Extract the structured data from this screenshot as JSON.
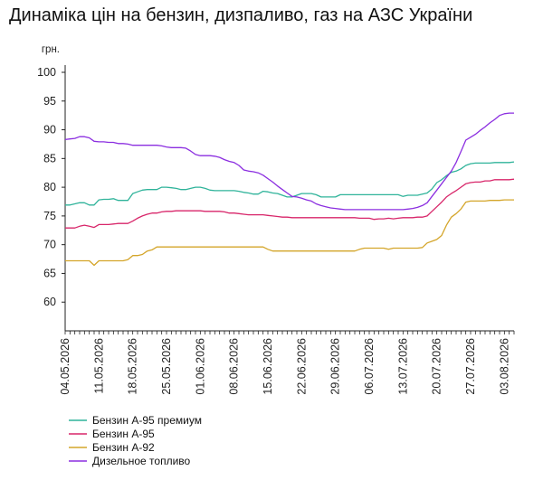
{
  "chart_data": {
    "type": "line",
    "title": "Динаміка цін на бензин, дизпаливо, газ на АЗС України",
    "ylabel": "грн.",
    "xlabel": "",
    "ylim": [
      55,
      100
    ],
    "yticks": [
      60,
      65,
      70,
      75,
      80,
      85,
      90,
      95,
      100
    ],
    "grid": false,
    "legend_position": "bottom-left",
    "x_dates": [
      "04.05.2026",
      "05.05.2026",
      "06.05.2026",
      "07.05.2026",
      "08.05.2026",
      "09.05.2026",
      "10.05.2026",
      "11.05.2026",
      "12.05.2026",
      "13.05.2026",
      "14.05.2026",
      "15.05.2026",
      "16.05.2026",
      "17.05.2026",
      "18.05.2026",
      "19.05.2026",
      "20.05.2026",
      "21.05.2026",
      "22.05.2026",
      "23.05.2026",
      "24.05.2026",
      "25.05.2026",
      "26.05.2026",
      "27.05.2026",
      "28.05.2026",
      "29.05.2026",
      "30.05.2026",
      "31.05.2026",
      "01.06.2026",
      "02.06.2026",
      "03.06.2026",
      "04.06.2026",
      "05.06.2026",
      "06.06.2026",
      "07.06.2026",
      "08.06.2026",
      "09.06.2026",
      "10.06.2026",
      "11.06.2026",
      "12.06.2026",
      "13.06.2026",
      "14.06.2026",
      "15.06.2026",
      "16.06.2026",
      "17.06.2026",
      "18.06.2026",
      "19.06.2026",
      "20.06.2026",
      "21.06.2026",
      "22.06.2026",
      "23.06.2026",
      "24.06.2026",
      "25.06.2026",
      "26.06.2026",
      "27.06.2026",
      "28.06.2026",
      "29.06.2026",
      "30.06.2026",
      "01.07.2026",
      "02.07.2026",
      "03.07.2026",
      "04.07.2026",
      "05.07.2026",
      "06.07.2026",
      "07.07.2026",
      "08.07.2026",
      "09.07.2026",
      "10.07.2026",
      "11.07.2026",
      "12.07.2026",
      "13.07.2026",
      "14.07.2026",
      "15.07.2026",
      "16.07.2026",
      "17.07.2026",
      "18.07.2026",
      "19.07.2026",
      "20.07.2026",
      "21.07.2026",
      "22.07.2026",
      "23.07.2026",
      "24.07.2026",
      "25.07.2026",
      "26.07.2026",
      "27.07.2026",
      "28.07.2026",
      "29.07.2026",
      "30.07.2026",
      "31.07.2026",
      "01.08.2026",
      "02.08.2026",
      "03.08.2026",
      "04.08.2026",
      "05.08.2026"
    ],
    "x_tick_labels": [
      "04.05.2026",
      "11.05.2026",
      "18.05.2026",
      "25.05.2026",
      "01.06.2026",
      "08.06.2026",
      "15.06.2026",
      "22.06.2026",
      "29.06.2026",
      "06.07.2026",
      "13.07.2026",
      "20.07.2026",
      "27.07.2026",
      "03.08.2026"
    ],
    "series": [
      {
        "name": "Бензин А-95 премиум",
        "color": "#2fb39a",
        "values": [
          76.9,
          76.9,
          77.1,
          77.3,
          77.3,
          76.9,
          76.9,
          77.8,
          77.9,
          77.9,
          78.0,
          77.7,
          77.7,
          77.7,
          78.9,
          79.2,
          79.5,
          79.6,
          79.6,
          79.6,
          80.0,
          80.0,
          79.9,
          79.8,
          79.6,
          79.6,
          79.8,
          80.0,
          80.0,
          79.8,
          79.5,
          79.4,
          79.4,
          79.4,
          79.4,
          79.4,
          79.3,
          79.1,
          79.0,
          78.8,
          78.8,
          79.3,
          79.2,
          79.0,
          78.9,
          78.6,
          78.3,
          78.3,
          78.6,
          78.9,
          78.9,
          78.9,
          78.7,
          78.3,
          78.3,
          78.3,
          78.3,
          78.7,
          78.7,
          78.7,
          78.7,
          78.7,
          78.7,
          78.7,
          78.7,
          78.7,
          78.7,
          78.7,
          78.7,
          78.7,
          78.4,
          78.6,
          78.6,
          78.6,
          78.8,
          79.0,
          79.7,
          80.8,
          81.3,
          82.0,
          82.6,
          82.8,
          83.2,
          83.8,
          84.1,
          84.2,
          84.2,
          84.2,
          84.2,
          84.3,
          84.3,
          84.3,
          84.3,
          84.4
        ]
      },
      {
        "name": "Бензин А-95",
        "color": "#d8266a",
        "values": [
          72.9,
          72.9,
          72.9,
          73.2,
          73.4,
          73.2,
          73.0,
          73.5,
          73.5,
          73.5,
          73.6,
          73.7,
          73.7,
          73.7,
          74.1,
          74.6,
          75.0,
          75.3,
          75.5,
          75.5,
          75.7,
          75.8,
          75.8,
          75.9,
          75.9,
          75.9,
          75.9,
          75.9,
          75.9,
          75.8,
          75.8,
          75.8,
          75.8,
          75.7,
          75.5,
          75.5,
          75.4,
          75.3,
          75.2,
          75.2,
          75.2,
          75.2,
          75.1,
          75.0,
          74.9,
          74.8,
          74.8,
          74.7,
          74.7,
          74.7,
          74.7,
          74.7,
          74.7,
          74.7,
          74.7,
          74.7,
          74.7,
          74.7,
          74.7,
          74.7,
          74.7,
          74.6,
          74.6,
          74.6,
          74.4,
          74.5,
          74.5,
          74.6,
          74.5,
          74.6,
          74.7,
          74.7,
          74.7,
          74.8,
          74.8,
          75.0,
          75.8,
          76.6,
          77.4,
          78.3,
          78.9,
          79.4,
          80.0,
          80.6,
          80.8,
          80.9,
          80.9,
          81.1,
          81.1,
          81.3,
          81.3,
          81.3,
          81.3,
          81.4
        ]
      },
      {
        "name": "Бензин А-92",
        "color": "#d4a52a",
        "values": [
          67.2,
          67.2,
          67.2,
          67.2,
          67.2,
          67.2,
          66.4,
          67.2,
          67.2,
          67.2,
          67.2,
          67.2,
          67.2,
          67.4,
          68.1,
          68.1,
          68.3,
          68.9,
          69.1,
          69.6,
          69.6,
          69.6,
          69.6,
          69.6,
          69.6,
          69.6,
          69.6,
          69.6,
          69.6,
          69.6,
          69.6,
          69.6,
          69.6,
          69.6,
          69.6,
          69.6,
          69.6,
          69.6,
          69.6,
          69.6,
          69.6,
          69.6,
          69.2,
          68.9,
          68.9,
          68.9,
          68.9,
          68.9,
          68.9,
          68.9,
          68.9,
          68.9,
          68.9,
          68.9,
          68.9,
          68.9,
          68.9,
          68.9,
          68.9,
          68.9,
          68.9,
          69.2,
          69.4,
          69.4,
          69.4,
          69.4,
          69.4,
          69.2,
          69.4,
          69.4,
          69.4,
          69.4,
          69.4,
          69.4,
          69.5,
          70.3,
          70.6,
          70.9,
          71.6,
          73.4,
          74.8,
          75.4,
          76.2,
          77.4,
          77.6,
          77.6,
          77.6,
          77.6,
          77.7,
          77.7,
          77.7,
          77.8,
          77.8,
          77.8
        ]
      },
      {
        "name": "Дизельное топливо",
        "color": "#8b2ee0",
        "values": [
          88.3,
          88.4,
          88.5,
          88.8,
          88.8,
          88.6,
          88.0,
          87.9,
          87.9,
          87.8,
          87.8,
          87.6,
          87.6,
          87.5,
          87.3,
          87.3,
          87.3,
          87.3,
          87.3,
          87.3,
          87.2,
          87.0,
          86.9,
          86.9,
          86.9,
          86.8,
          86.3,
          85.7,
          85.5,
          85.5,
          85.5,
          85.4,
          85.2,
          84.8,
          84.5,
          84.3,
          83.8,
          83.0,
          82.8,
          82.7,
          82.5,
          82.1,
          81.5,
          80.9,
          80.2,
          79.6,
          79.0,
          78.4,
          78.3,
          78.1,
          77.8,
          77.6,
          77.1,
          76.8,
          76.6,
          76.4,
          76.3,
          76.2,
          76.1,
          76.1,
          76.1,
          76.1,
          76.1,
          76.1,
          76.1,
          76.1,
          76.1,
          76.1,
          76.1,
          76.1,
          76.1,
          76.2,
          76.3,
          76.5,
          76.8,
          77.3,
          78.4,
          79.5,
          80.6,
          81.7,
          82.8,
          84.3,
          86.2,
          88.2,
          88.7,
          89.2,
          89.9,
          90.5,
          91.2,
          91.8,
          92.5,
          92.8,
          92.9,
          92.9
        ]
      }
    ]
  }
}
